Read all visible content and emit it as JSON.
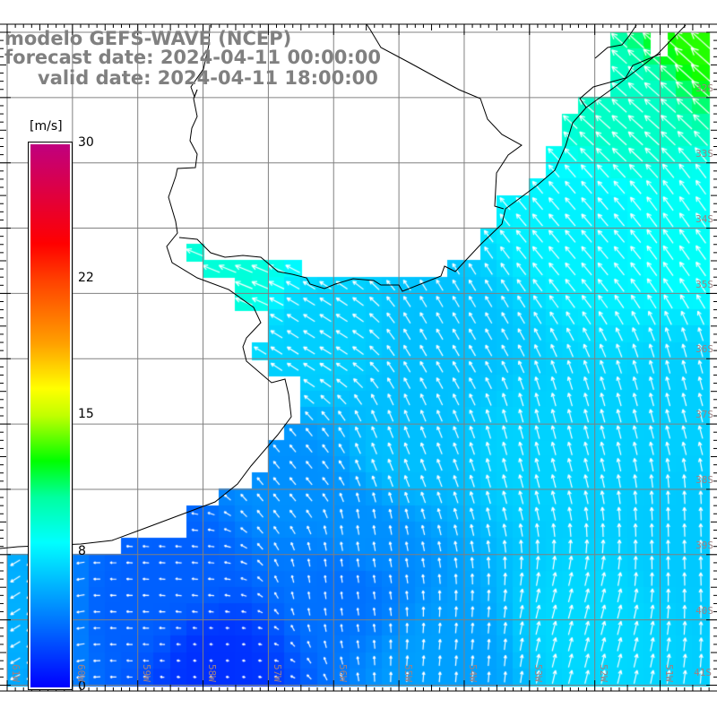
{
  "header": {
    "model": "modelo GEFS-WAVE (NCEP)",
    "forecast": "forecast date: 2024-04-11 00:00:00",
    "valid": "valid date: 2024-04-11 18:00:00"
  },
  "colorbar": {
    "unit": "[m/s]",
    "labels": [
      "30",
      "22",
      "15",
      "8",
      "0"
    ],
    "range": [
      0,
      30
    ]
  },
  "lat_labels": [
    "32S",
    "33S",
    "34S",
    "35S",
    "36S",
    "37S",
    "38S",
    "39S",
    "40S",
    "41S"
  ],
  "lon_labels": [
    "61W",
    "60W",
    "59W",
    "58W",
    "57W",
    "56W",
    "55W",
    "54W",
    "53W",
    "52W",
    "51W"
  ],
  "colors": {
    "grid": "#808080",
    "coast": "#000000",
    "title": "#808080",
    "arrow": "#ffffff"
  }
}
